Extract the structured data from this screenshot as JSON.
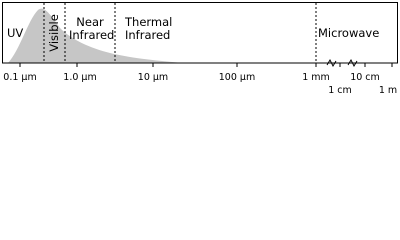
{
  "regions": [
    "UV",
    "Visible",
    "Near Infrared",
    "Thermal Infrared",
    "Microwave"
  ],
  "ticks_top": [
    "0.1 µm",
    "1.0 µm",
    "10 µm",
    "100 µm",
    "1 mm",
    "10 cm"
  ],
  "ticks_bottom": [
    "1 cm",
    "1 m"
  ]
}
